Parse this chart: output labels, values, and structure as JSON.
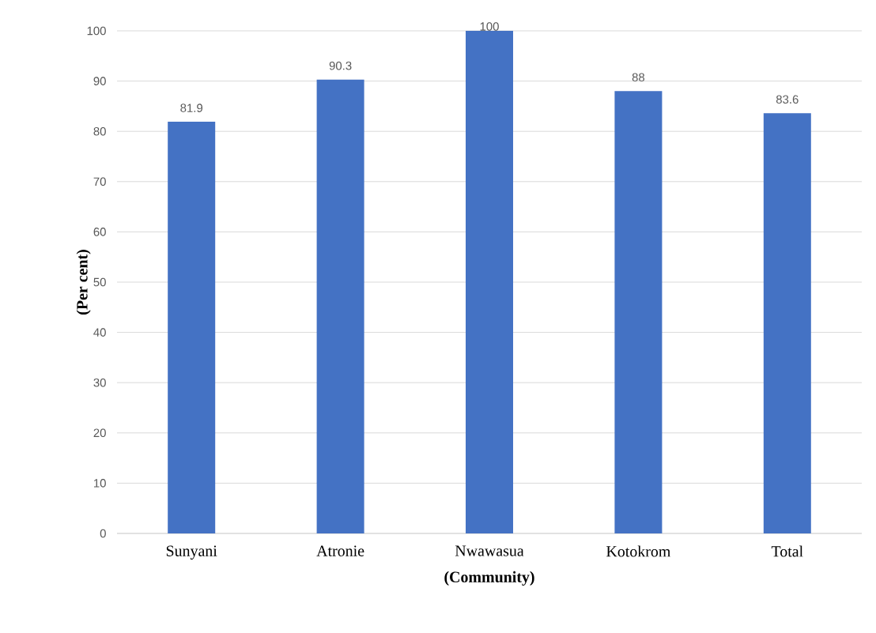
{
  "chart_data": {
    "type": "bar",
    "xlabel": "(Community)",
    "ylabel": "(Per cent)",
    "categories": [
      "Sunyani",
      "Atronie",
      "Nwawasua",
      "Kotokrom",
      "Total"
    ],
    "values": [
      81.9,
      90.3,
      100,
      88,
      83.6
    ],
    "color": "#4472c4",
    "ylim": [
      0,
      100
    ],
    "yticks": [
      0,
      10,
      20,
      30,
      40,
      50,
      60,
      70,
      80,
      90,
      100
    ],
    "grid": "y",
    "data_labels": true
  }
}
